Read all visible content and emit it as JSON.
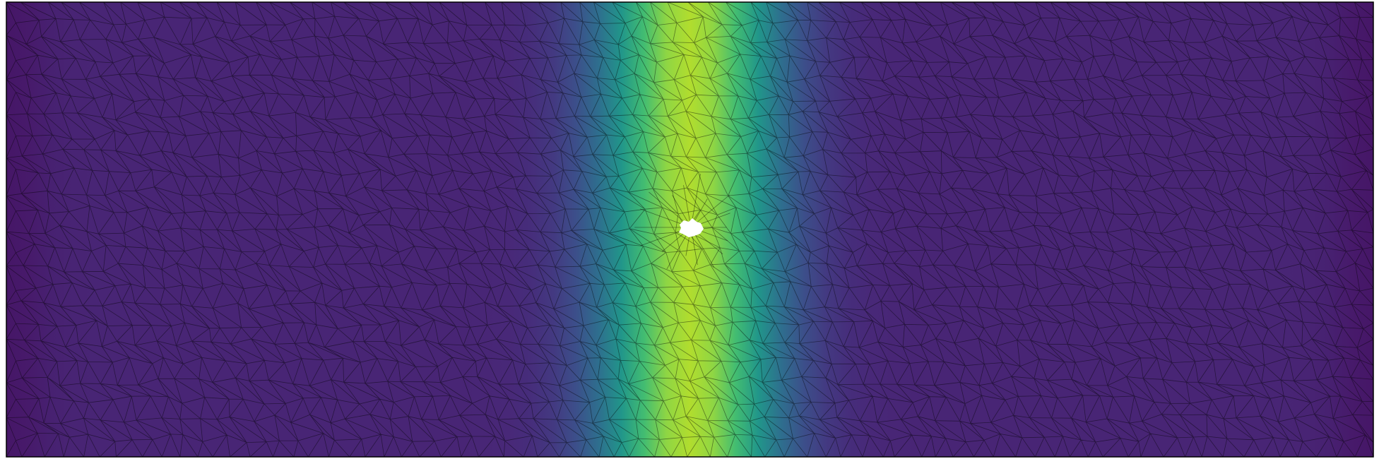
{
  "figure": {
    "colormap": "viridis",
    "colormap_stops": [
      "#440154",
      "#482878",
      "#3e4989",
      "#31688e",
      "#26828e",
      "#1f9e89",
      "#35b779",
      "#6ece58",
      "#b5de2b",
      "#fde725"
    ],
    "mesh_line_color": "#000000",
    "hole_color": "#ffffff",
    "frame_color": "#000000",
    "field": {
      "description_free": true,
      "peak_x_fraction": 0.5,
      "peak_value": 0.78,
      "min_value": 0.0
    }
  }
}
